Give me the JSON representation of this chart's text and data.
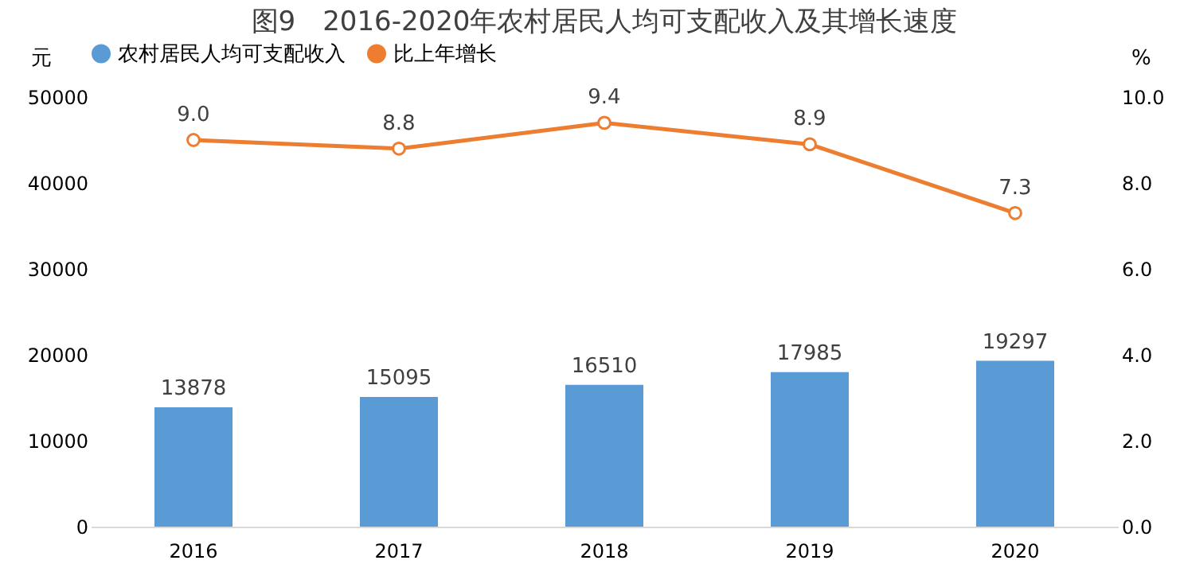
{
  "chart_data": {
    "type": "bar",
    "title": "图9　2016-2020年农村居民人均可支配收入及其增长速度",
    "ylabel": "元",
    "y2label": "%",
    "categories": [
      "2016",
      "2017",
      "2018",
      "2019",
      "2020"
    ],
    "series": [
      {
        "name": "农村居民人均可支配收入",
        "color": "#5b9bd5",
        "values": [
          13878,
          15095,
          16510,
          17985,
          19297
        ],
        "value_labels": [
          "13878",
          "15095",
          "16510",
          "17985",
          "19297"
        ]
      },
      {
        "name": "比上年增长",
        "type": "line",
        "axis": "y2",
        "color": "#ed7d31",
        "values": [
          9.0,
          8.8,
          9.4,
          8.9,
          7.3
        ],
        "value_labels": [
          "9.0",
          "8.8",
          "9.4",
          "8.9",
          "7.3"
        ]
      }
    ],
    "ylim": [
      0,
      50000
    ],
    "yticks": [
      0,
      10000,
      20000,
      30000,
      40000,
      50000
    ],
    "y2lim": [
      0,
      10
    ],
    "y2ticks": [
      {
        "value": 0,
        "label": "0.0"
      },
      {
        "value": 2,
        "label": "2.0"
      },
      {
        "value": 4,
        "label": "4.0"
      },
      {
        "value": 6,
        "label": "6.0"
      },
      {
        "value": 8,
        "label": "8.0"
      },
      {
        "value": 10,
        "label": "10.0"
      }
    ],
    "grid": false,
    "legend": "top",
    "marker": "circle",
    "line_style": "solid"
  }
}
